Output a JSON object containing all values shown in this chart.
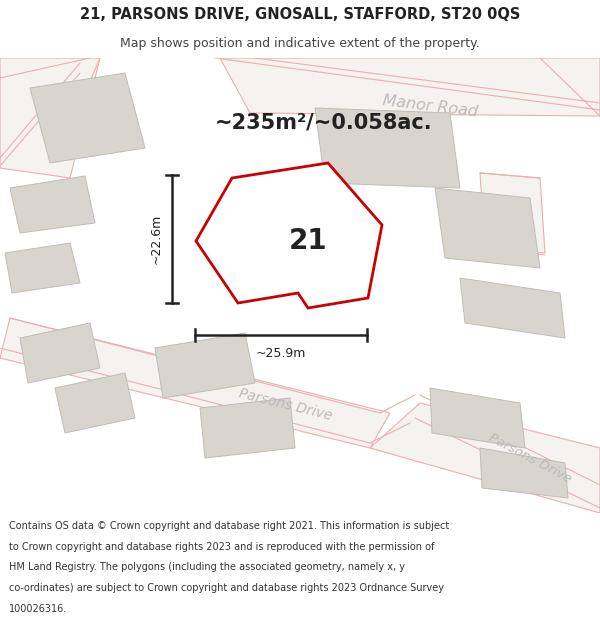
{
  "title_line1": "21, PARSONS DRIVE, GNOSALL, STAFFORD, ST20 0QS",
  "title_line2": "Map shows position and indicative extent of the property.",
  "area_text": "~235m²/~0.058ac.",
  "label_21": "21",
  "dim_height": "~22.6m",
  "dim_width": "~25.9m",
  "road_label_manor": "Manor Road",
  "road_label_parsons1": "Parsons Drive",
  "road_label_parsons2": "Parsons Drive",
  "footer_lines": [
    "Contains OS data © Crown copyright and database right 2021. This information is subject",
    "to Crown copyright and database rights 2023 and is reproduced with the permission of",
    "HM Land Registry. The polygons (including the associated geometry, namely x, y",
    "co-ordinates) are subject to Crown copyright and database rights 2023 Ordnance Survey",
    "100026316."
  ],
  "map_bg": "#eeebe6",
  "road_fill": "#f5f2ef",
  "building_fill": "#d8d4ce",
  "building_stroke": "#c0bcb6",
  "property_fill": "#ffffff",
  "property_stroke": "#cc0000",
  "road_stroke": "#e8b0b0",
  "road_center_stroke": "#ddbbbb",
  "dim_color": "#222222",
  "text_dark": "#222222",
  "text_road": "#bbbbbb",
  "footer_color": "#333333",
  "white": "#ffffff"
}
